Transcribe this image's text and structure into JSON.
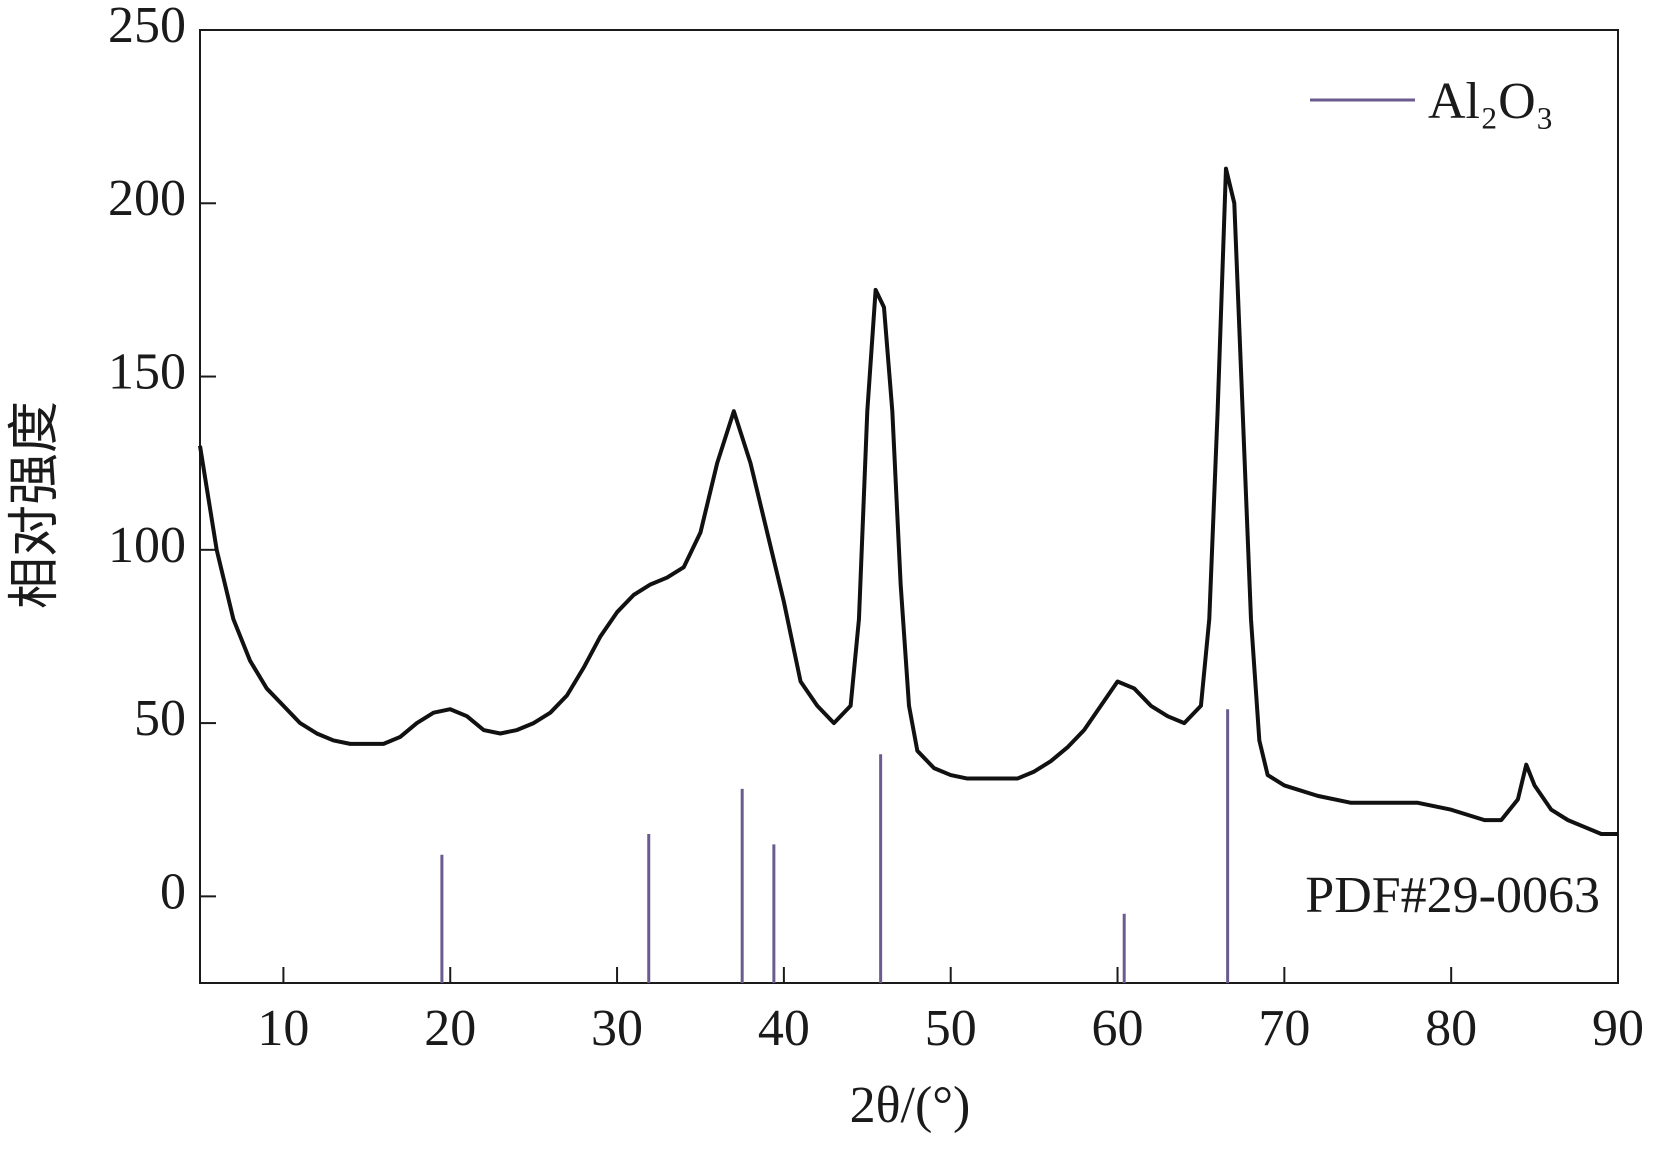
{
  "chart_data": {
    "type": "line",
    "xlabel": "2θ/(°)",
    "ylabel": "相对强度",
    "xlim": [
      5,
      90
    ],
    "ylim": [
      -25,
      250
    ],
    "xticks": [
      10,
      20,
      30,
      40,
      50,
      60,
      70,
      80,
      90
    ],
    "yticks": [
      0,
      50,
      100,
      150,
      200,
      250
    ],
    "legend": "top-right",
    "annotation": "PDF#29-0063",
    "series": [
      {
        "color": "#111111",
        "x": [
          5,
          6,
          7,
          8,
          9,
          10,
          11,
          12,
          13,
          14,
          15,
          16,
          17,
          18,
          19,
          20,
          21,
          22,
          23,
          24,
          25,
          26,
          27,
          28,
          29,
          30,
          31,
          32,
          33,
          34,
          35,
          36,
          37,
          38,
          39,
          40,
          41,
          42,
          43,
          44,
          44.5,
          45,
          45.5,
          46,
          46.5,
          47,
          47.5,
          48,
          49,
          50,
          51,
          52,
          53,
          54,
          55,
          56,
          57,
          58,
          59,
          60,
          61,
          62,
          63,
          64,
          65,
          65.5,
          66,
          66.5,
          67,
          67.5,
          68,
          68.5,
          69,
          70,
          72,
          74,
          76,
          78,
          80,
          82,
          83,
          84,
          84.5,
          85,
          86,
          87,
          88,
          89,
          90
        ],
        "values": [
          130,
          100,
          80,
          68,
          60,
          55,
          50,
          47,
          45,
          44,
          44,
          44,
          46,
          50,
          53,
          54,
          52,
          48,
          47,
          48,
          50,
          53,
          58,
          66,
          75,
          82,
          87,
          90,
          92,
          95,
          105,
          125,
          140,
          125,
          105,
          85,
          62,
          55,
          50,
          55,
          80,
          140,
          175,
          170,
          140,
          90,
          55,
          42,
          37,
          35,
          34,
          34,
          34,
          34,
          36,
          39,
          43,
          48,
          55,
          62,
          60,
          55,
          52,
          50,
          55,
          80,
          140,
          210,
          200,
          140,
          80,
          45,
          35,
          32,
          29,
          27,
          27,
          27,
          25,
          22,
          22,
          28,
          38,
          32,
          25,
          22,
          20,
          18,
          18
        ]
      },
      {
        "name": "Al₂O₃",
        "color": "#6b5b8e",
        "style": "stick",
        "x": [
          19.5,
          31.9,
          37.5,
          39.4,
          45.8,
          60.4,
          66.6
        ],
        "values": [
          12,
          18,
          31,
          15,
          41,
          -5,
          54
        ]
      }
    ]
  }
}
